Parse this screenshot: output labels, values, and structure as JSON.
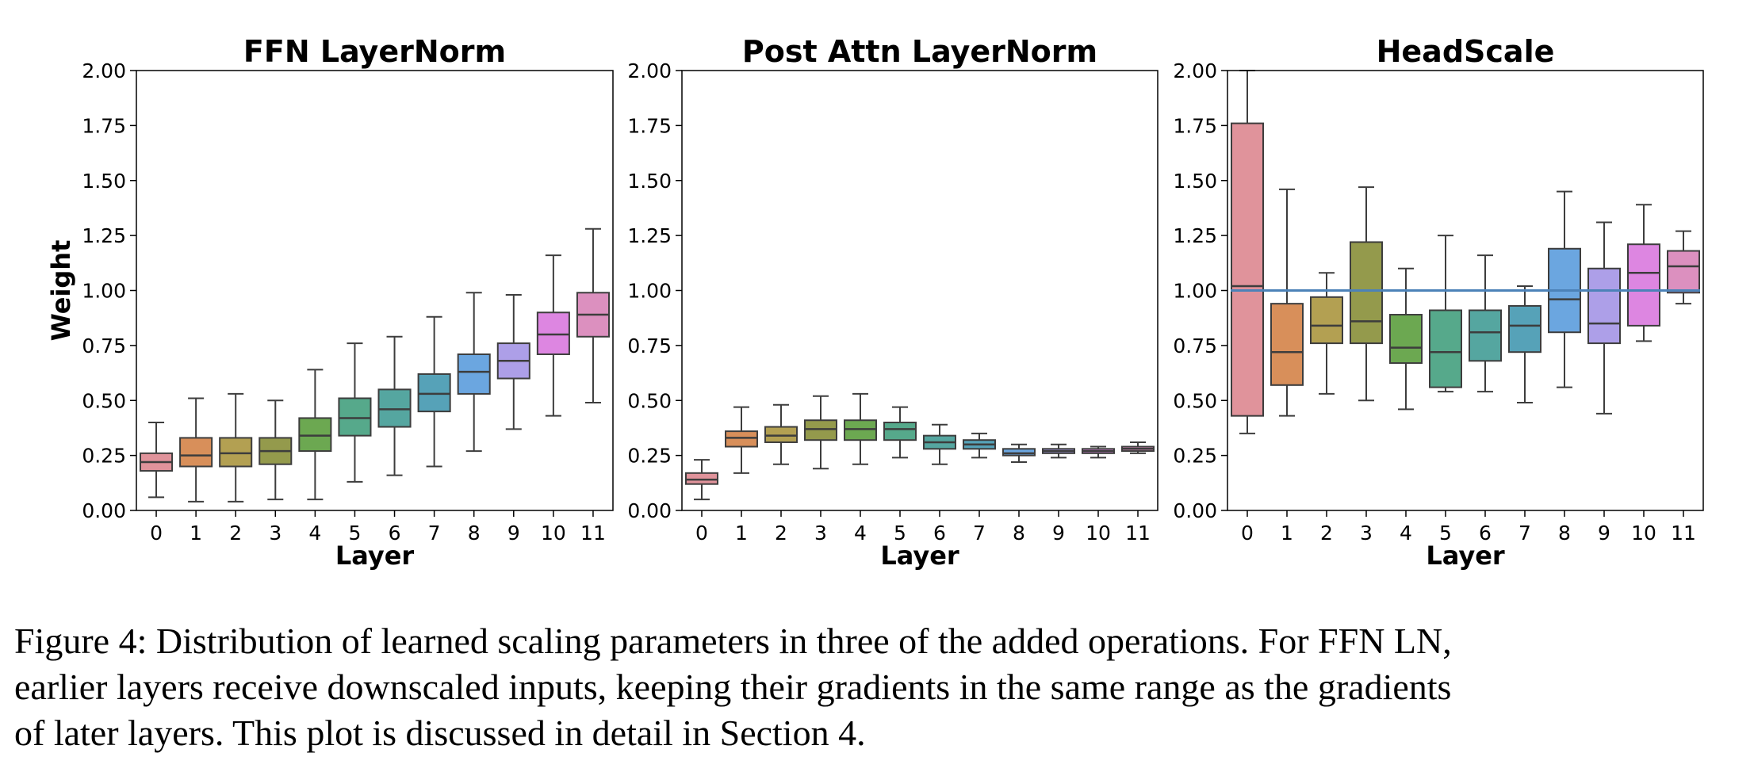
{
  "chart_data": [
    {
      "type": "box",
      "title": "FFN LayerNorm",
      "xlabel": "Layer",
      "ylabel": "Weight",
      "ylim": [
        0,
        2
      ],
      "yticks": [
        "0.00",
        "0.25",
        "0.50",
        "0.75",
        "1.00",
        "1.25",
        "1.50",
        "1.75",
        "2.00"
      ],
      "categories": [
        "0",
        "1",
        "2",
        "3",
        "4",
        "5",
        "6",
        "7",
        "8",
        "9",
        "10",
        "11"
      ],
      "boxes": [
        {
          "whislo": 0.06,
          "q1": 0.18,
          "med": 0.22,
          "q3": 0.26,
          "whishi": 0.4
        },
        {
          "whislo": 0.04,
          "q1": 0.2,
          "med": 0.25,
          "q3": 0.33,
          "whishi": 0.51
        },
        {
          "whislo": 0.04,
          "q1": 0.2,
          "med": 0.26,
          "q3": 0.33,
          "whishi": 0.53
        },
        {
          "whislo": 0.05,
          "q1": 0.21,
          "med": 0.27,
          "q3": 0.33,
          "whishi": 0.5
        },
        {
          "whislo": 0.05,
          "q1": 0.27,
          "med": 0.34,
          "q3": 0.42,
          "whishi": 0.64
        },
        {
          "whislo": 0.13,
          "q1": 0.34,
          "med": 0.42,
          "q3": 0.51,
          "whishi": 0.76
        },
        {
          "whislo": 0.16,
          "q1": 0.38,
          "med": 0.46,
          "q3": 0.55,
          "whishi": 0.79
        },
        {
          "whislo": 0.2,
          "q1": 0.45,
          "med": 0.53,
          "q3": 0.62,
          "whishi": 0.88
        },
        {
          "whislo": 0.27,
          "q1": 0.53,
          "med": 0.63,
          "q3": 0.71,
          "whishi": 0.99
        },
        {
          "whislo": 0.37,
          "q1": 0.6,
          "med": 0.68,
          "q3": 0.76,
          "whishi": 0.98
        },
        {
          "whislo": 0.43,
          "q1": 0.71,
          "med": 0.8,
          "q3": 0.9,
          "whishi": 1.16
        },
        {
          "whislo": 0.49,
          "q1": 0.79,
          "med": 0.89,
          "q3": 0.99,
          "whishi": 1.28
        }
      ]
    },
    {
      "type": "box",
      "title": "Post Attn LayerNorm",
      "xlabel": "Layer",
      "ylabel": "",
      "ylim": [
        0,
        2
      ],
      "yticks": [
        "0.00",
        "0.25",
        "0.50",
        "0.75",
        "1.00",
        "1.25",
        "1.50",
        "1.75",
        "2.00"
      ],
      "categories": [
        "0",
        "1",
        "2",
        "3",
        "4",
        "5",
        "6",
        "7",
        "8",
        "9",
        "10",
        "11"
      ],
      "boxes": [
        {
          "whislo": 0.05,
          "q1": 0.12,
          "med": 0.14,
          "q3": 0.17,
          "whishi": 0.23
        },
        {
          "whislo": 0.17,
          "q1": 0.29,
          "med": 0.33,
          "q3": 0.36,
          "whishi": 0.47
        },
        {
          "whislo": 0.21,
          "q1": 0.31,
          "med": 0.34,
          "q3": 0.38,
          "whishi": 0.48
        },
        {
          "whislo": 0.19,
          "q1": 0.32,
          "med": 0.37,
          "q3": 0.41,
          "whishi": 0.52
        },
        {
          "whislo": 0.21,
          "q1": 0.32,
          "med": 0.37,
          "q3": 0.41,
          "whishi": 0.53
        },
        {
          "whislo": 0.24,
          "q1": 0.32,
          "med": 0.37,
          "q3": 0.4,
          "whishi": 0.47
        },
        {
          "whislo": 0.21,
          "q1": 0.28,
          "med": 0.31,
          "q3": 0.34,
          "whishi": 0.39
        },
        {
          "whislo": 0.24,
          "q1": 0.28,
          "med": 0.3,
          "q3": 0.32,
          "whishi": 0.35
        },
        {
          "whislo": 0.22,
          "q1": 0.25,
          "med": 0.26,
          "q3": 0.28,
          "whishi": 0.3
        },
        {
          "whislo": 0.24,
          "q1": 0.26,
          "med": 0.27,
          "q3": 0.28,
          "whishi": 0.3
        },
        {
          "whislo": 0.24,
          "q1": 0.26,
          "med": 0.27,
          "q3": 0.28,
          "whishi": 0.29
        },
        {
          "whislo": 0.26,
          "q1": 0.27,
          "med": 0.28,
          "q3": 0.29,
          "whishi": 0.31
        }
      ]
    },
    {
      "type": "box",
      "title": "HeadScale",
      "xlabel": "Layer",
      "ylabel": "",
      "ylim": [
        0,
        2
      ],
      "yticks": [
        "0.00",
        "0.25",
        "0.50",
        "0.75",
        "1.00",
        "1.25",
        "1.50",
        "1.75",
        "2.00"
      ],
      "categories": [
        "0",
        "1",
        "2",
        "3",
        "4",
        "5",
        "6",
        "7",
        "8",
        "9",
        "10",
        "11"
      ],
      "reference_line": 1.0,
      "boxes": [
        {
          "whislo": 0.35,
          "q1": 0.43,
          "med": 1.02,
          "q3": 1.76,
          "whishi": 2.0
        },
        {
          "whislo": 0.43,
          "q1": 0.57,
          "med": 0.72,
          "q3": 0.94,
          "whishi": 1.46
        },
        {
          "whislo": 0.53,
          "q1": 0.76,
          "med": 0.84,
          "q3": 0.97,
          "whishi": 1.08
        },
        {
          "whislo": 0.5,
          "q1": 0.76,
          "med": 0.86,
          "q3": 1.22,
          "whishi": 1.47
        },
        {
          "whislo": 0.46,
          "q1": 0.67,
          "med": 0.74,
          "q3": 0.89,
          "whishi": 1.1
        },
        {
          "whislo": 0.54,
          "q1": 0.56,
          "med": 0.72,
          "q3": 0.91,
          "whishi": 1.25
        },
        {
          "whislo": 0.54,
          "q1": 0.68,
          "med": 0.81,
          "q3": 0.91,
          "whishi": 1.16
        },
        {
          "whislo": 0.49,
          "q1": 0.72,
          "med": 0.84,
          "q3": 0.93,
          "whishi": 1.02
        },
        {
          "whislo": 0.56,
          "q1": 0.81,
          "med": 0.96,
          "q3": 1.19,
          "whishi": 1.45
        },
        {
          "whislo": 0.44,
          "q1": 0.76,
          "med": 0.85,
          "q3": 1.1,
          "whishi": 1.31
        },
        {
          "whislo": 0.77,
          "q1": 0.84,
          "med": 1.08,
          "q3": 1.21,
          "whishi": 1.39
        },
        {
          "whislo": 0.94,
          "q1": 0.99,
          "med": 1.11,
          "q3": 1.18,
          "whishi": 1.27
        }
      ]
    }
  ],
  "palette": [
    "#e0939b",
    "#d88f5a",
    "#b3a052",
    "#949a4c",
    "#6ca851",
    "#56a98b",
    "#55a6a0",
    "#56a2b8",
    "#6ba6e0",
    "#ad9fe8",
    "#dd86e1",
    "#dc90bf"
  ],
  "headscale_palette": [
    "#e0939b",
    "#d88f5a",
    "#b3a052",
    "#949a4c",
    "#6ca851",
    "#56a98b",
    "#55a6a0",
    "#56a2b8",
    "#6ba6e0",
    "#ad9fe8",
    "#dd86e1",
    "#dc90bf"
  ],
  "reference_line_color": "#4c82b8",
  "caption": {
    "line1": "Figure 4: Distribution of learned scaling parameters in three of the added operations. For FFN LN,",
    "line2": "earlier layers receive downscaled inputs, keeping their gradients in the same range as the gradients",
    "line3": "of later layers. This plot is discussed in detail in Section 4."
  }
}
